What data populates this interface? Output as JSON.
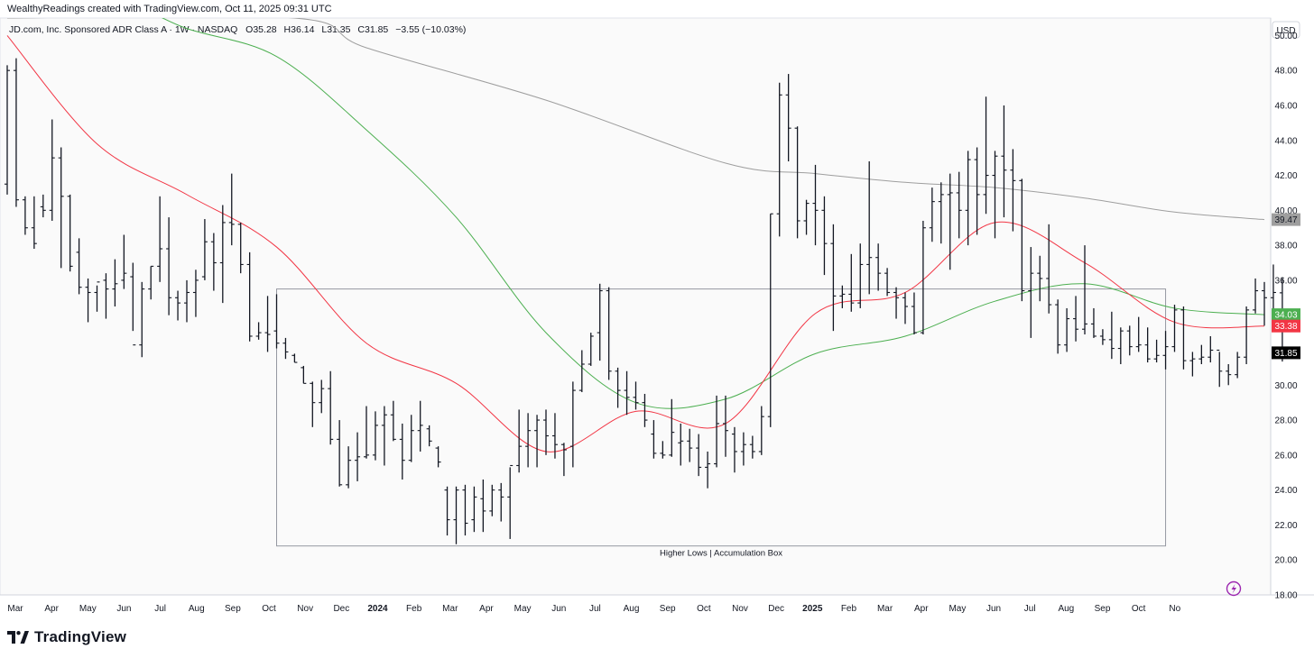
{
  "watermark": "WealthyReadings created with TradingView.com, Oct 11, 2025 09:31 UTC",
  "brand": "TradingView",
  "header": {
    "instrument": "JD.com, Inc. Sponsored ADR Class A · 1W · NASDAQ",
    "o_label": "O",
    "o": "35.28",
    "h_label": "H",
    "h": "36.14",
    "l_label": "L",
    "l": "31.35",
    "c_label": "C",
    "c": "31.85",
    "change": "−3.55 (−10.03%)"
  },
  "currency": "USD",
  "colors": {
    "bars": "#131722",
    "ma_short": "#f23645",
    "ma_mid": "#4caf50",
    "ma_long": "#9e9e9e",
    "price_tag": "#000000",
    "grid_bg": "#fafafa"
  },
  "chart_data": {
    "type": "ohlc_bars",
    "timeframe": "1W",
    "y_ticks": [
      "50.00",
      "48.00",
      "46.00",
      "44.00",
      "42.00",
      "40.00",
      "38.00",
      "36.00",
      "34.00",
      "32.00",
      "30.00",
      "28.00",
      "26.00",
      "24.00",
      "22.00",
      "20.00",
      "18.00"
    ],
    "ylim": [
      18,
      51
    ],
    "x_ticks": [
      "Mar",
      "Apr",
      "May",
      "Jun",
      "Jul",
      "Aug",
      "Sep",
      "Oct",
      "Nov",
      "Dec",
      "2024",
      "Feb",
      "Mar",
      "Apr",
      "May",
      "Jun",
      "Jul",
      "Aug",
      "Sep",
      "Oct",
      "Nov",
      "Dec",
      "2025",
      "Feb",
      "Mar",
      "Apr",
      "May",
      "Jun",
      "Jul",
      "Aug",
      "Sep",
      "Oct",
      "No"
    ],
    "bold_x_ticks": [
      "2024",
      "2025"
    ],
    "price_labels": [
      {
        "value": 39.47,
        "text": "39.47",
        "color": "#9e9e9e",
        "text_color": "#131722"
      },
      {
        "value": 34.03,
        "text": "34.03",
        "color": "#4caf50",
        "text_color": "#ffffff"
      },
      {
        "value": 33.38,
        "text": "33.38",
        "color": "#f23645",
        "text_color": "#ffffff"
      },
      {
        "value": 31.85,
        "text": "31.85",
        "color": "#000000",
        "text_color": "#ffffff"
      }
    ],
    "annotation": {
      "text": "Higher Lows | Accumulation Box",
      "x_start_bar": 30,
      "x_end_bar": 129,
      "y_top": 35.5,
      "y_bottom": 20.8
    },
    "bars": [
      [
        41.5,
        48.3,
        40.9,
        48.0
      ],
      [
        48.0,
        48.7,
        40.2,
        40.6
      ],
      [
        40.6,
        40.8,
        38.6,
        39.0
      ],
      [
        39.0,
        40.8,
        37.8,
        38.1
      ],
      [
        40.2,
        40.9,
        39.6,
        40.0
      ],
      [
        40.0,
        45.2,
        39.4,
        43.0
      ],
      [
        43.0,
        43.6,
        36.7,
        40.8
      ],
      [
        40.8,
        40.9,
        36.5,
        36.8
      ],
      [
        37.6,
        38.4,
        35.2,
        35.6
      ],
      [
        35.6,
        36.1,
        33.6,
        35.3
      ],
      [
        35.3,
        35.7,
        34.2,
        35.9
      ],
      [
        36.0,
        36.4,
        33.8,
        35.5
      ],
      [
        35.5,
        37.2,
        34.5,
        35.8
      ],
      [
        36.0,
        38.6,
        35.5,
        36.4
      ],
      [
        36.2,
        37.0,
        33.1,
        32.3
      ],
      [
        32.3,
        35.9,
        31.6,
        35.5
      ],
      [
        35.5,
        36.8,
        34.9,
        36.8
      ],
      [
        36.8,
        40.8,
        35.9,
        37.8
      ],
      [
        37.8,
        39.6,
        34.0,
        35.0
      ],
      [
        35.0,
        35.4,
        33.7,
        34.7
      ],
      [
        34.7,
        36.0,
        33.6,
        35.3
      ],
      [
        35.3,
        36.6,
        33.9,
        36.0
      ],
      [
        36.2,
        39.5,
        36.0,
        38.2
      ],
      [
        38.2,
        38.7,
        35.4,
        37.0
      ],
      [
        37.0,
        40.3,
        34.7,
        39.3
      ],
      [
        39.3,
        42.1,
        38.0,
        39.2
      ],
      [
        39.2,
        39.3,
        36.4,
        36.9
      ],
      [
        36.9,
        37.6,
        32.5,
        32.8
      ],
      [
        32.8,
        33.6,
        32.6,
        33.0
      ],
      [
        33.0,
        35.1,
        31.9,
        32.9
      ],
      [
        33.1,
        35.2,
        32.1,
        32.4
      ],
      [
        32.4,
        32.7,
        31.5,
        31.9
      ],
      [
        31.7,
        31.8,
        31.3,
        31.3
      ],
      [
        31.0,
        31.1,
        30.1,
        30.1
      ],
      [
        30.1,
        30.2,
        27.6,
        29.0
      ],
      [
        29.0,
        30.3,
        28.4,
        29.8
      ],
      [
        29.8,
        30.8,
        26.6,
        26.9
      ],
      [
        26.9,
        28.0,
        24.2,
        24.3
      ],
      [
        24.3,
        26.5,
        24.1,
        25.7
      ],
      [
        25.7,
        27.3,
        24.5,
        25.9
      ],
      [
        25.9,
        28.8,
        25.8,
        26.0
      ],
      [
        26.0,
        28.5,
        25.7,
        27.7
      ],
      [
        27.7,
        28.8,
        25.4,
        28.3
      ],
      [
        28.3,
        29.1,
        26.8,
        26.9
      ],
      [
        26.9,
        27.8,
        24.6,
        25.7
      ],
      [
        25.7,
        28.3,
        25.6,
        27.4
      ],
      [
        27.4,
        29.1,
        26.2,
        27.7
      ],
      [
        27.5,
        27.7,
        26.5,
        26.8
      ],
      [
        26.4,
        26.5,
        25.3,
        25.6
      ],
      [
        24.0,
        24.2,
        21.4,
        22.3
      ],
      [
        22.3,
        24.2,
        20.9,
        24.0
      ],
      [
        24.0,
        24.3,
        21.4,
        22.1
      ],
      [
        22.3,
        24.2,
        21.6,
        23.6
      ],
      [
        23.5,
        24.6,
        21.6,
        22.8
      ],
      [
        22.8,
        24.3,
        22.5,
        24.0
      ],
      [
        24.0,
        24.4,
        22.2,
        23.6
      ],
      [
        23.6,
        25.3,
        21.2,
        25.4
      ],
      [
        25.4,
        28.6,
        25.0,
        26.5
      ],
      [
        26.5,
        28.4,
        25.3,
        27.4
      ],
      [
        27.4,
        28.3,
        25.3,
        28.0
      ],
      [
        28.0,
        28.6,
        26.0,
        27.1
      ],
      [
        27.1,
        28.4,
        25.8,
        26.6
      ],
      [
        26.6,
        26.7,
        24.8,
        26.3
      ],
      [
        26.5,
        30.2,
        25.3,
        29.7
      ],
      [
        29.7,
        32.0,
        29.6,
        31.2
      ],
      [
        31.2,
        33.0,
        31.1,
        32.8
      ],
      [
        33.0,
        35.8,
        31.4,
        35.4
      ],
      [
        35.4,
        35.6,
        30.3,
        30.8
      ],
      [
        30.8,
        31.0,
        28.7,
        29.7
      ],
      [
        29.7,
        30.8,
        28.3,
        29.3
      ],
      [
        29.3,
        30.2,
        28.6,
        29.0
      ],
      [
        29.0,
        29.5,
        27.6,
        28.0
      ],
      [
        27.2,
        28.0,
        25.8,
        26.1
      ],
      [
        26.1,
        26.8,
        25.8,
        26.0
      ],
      [
        26.0,
        29.2,
        25.9,
        27.3
      ],
      [
        26.7,
        27.8,
        25.4,
        26.8
      ],
      [
        26.8,
        27.5,
        25.6,
        26.4
      ],
      [
        26.4,
        27.2,
        24.8,
        25.3
      ],
      [
        25.3,
        26.2,
        24.1,
        25.5
      ],
      [
        25.5,
        29.4,
        25.3,
        27.8
      ],
      [
        27.8,
        29.4,
        25.9,
        27.4
      ],
      [
        27.2,
        27.6,
        25.0,
        26.2
      ],
      [
        26.2,
        27.3,
        25.4,
        26.6
      ],
      [
        26.6,
        27.1,
        25.8,
        26.2
      ],
      [
        26.2,
        28.8,
        26.0,
        28.2
      ],
      [
        28.2,
        39.8,
        27.6,
        39.8
      ],
      [
        39.8,
        47.3,
        38.5,
        46.6
      ],
      [
        46.6,
        47.8,
        42.8,
        44.7
      ],
      [
        44.7,
        44.8,
        38.4,
        39.4
      ],
      [
        39.4,
        40.6,
        38.6,
        40.4
      ],
      [
        40.4,
        42.6,
        38.0,
        40.0
      ],
      [
        40.0,
        40.8,
        36.3,
        38.1
      ],
      [
        38.1,
        39.2,
        33.1,
        35.1
      ],
      [
        35.1,
        35.7,
        34.4,
        35.2
      ],
      [
        35.2,
        37.5,
        34.2,
        34.7
      ],
      [
        34.7,
        38.1,
        34.4,
        36.9
      ],
      [
        36.9,
        42.8,
        35.2,
        37.3
      ],
      [
        37.3,
        38.1,
        35.4,
        36.4
      ],
      [
        36.4,
        36.7,
        35.1,
        35.3
      ],
      [
        35.3,
        35.6,
        33.8,
        35.0
      ],
      [
        35.0,
        35.3,
        33.5,
        34.5
      ],
      [
        34.5,
        35.3,
        32.9,
        33.0
      ],
      [
        33.0,
        39.4,
        32.9,
        39.0
      ],
      [
        39.0,
        41.3,
        38.2,
        40.5
      ],
      [
        40.5,
        41.6,
        38.1,
        40.9
      ],
      [
        40.9,
        42.1,
        36.6,
        41.0
      ],
      [
        41.0,
        42.2,
        38.4,
        40.0
      ],
      [
        40.0,
        43.4,
        38.0,
        42.9
      ],
      [
        42.9,
        43.6,
        38.6,
        40.9
      ],
      [
        40.9,
        46.5,
        39.8,
        42.0
      ],
      [
        42.0,
        43.4,
        38.4,
        43.1
      ],
      [
        43.1,
        46.0,
        39.6,
        42.3
      ],
      [
        42.3,
        43.5,
        38.8,
        41.7
      ],
      [
        41.7,
        41.8,
        34.8,
        35.4
      ],
      [
        35.4,
        37.9,
        32.7,
        36.4
      ],
      [
        36.4,
        37.4,
        34.8,
        36.1
      ],
      [
        36.1,
        39.2,
        34.1,
        34.6
      ],
      [
        34.6,
        34.9,
        31.8,
        32.3
      ],
      [
        32.3,
        34.4,
        31.9,
        33.8
      ],
      [
        33.8,
        35.1,
        32.5,
        33.2
      ],
      [
        33.2,
        38.0,
        32.9,
        33.5
      ],
      [
        33.5,
        34.4,
        32.7,
        32.8
      ],
      [
        32.8,
        33.2,
        32.3,
        32.6
      ],
      [
        32.6,
        34.2,
        31.5,
        32.1
      ],
      [
        32.1,
        33.3,
        31.2,
        33.1
      ],
      [
        33.1,
        33.4,
        31.7,
        32.2
      ],
      [
        32.2,
        33.9,
        31.9,
        32.3
      ],
      [
        32.3,
        33.3,
        31.3,
        31.5
      ],
      [
        31.5,
        32.6,
        31.3,
        31.7
      ],
      [
        31.7,
        33.1,
        30.9,
        32.2
      ],
      [
        32.2,
        34.6,
        31.9,
        34.3
      ],
      [
        34.3,
        34.5,
        30.9,
        31.4
      ],
      [
        31.4,
        31.9,
        30.5,
        31.5
      ],
      [
        31.5,
        32.3,
        31.2,
        31.6
      ],
      [
        31.6,
        32.8,
        31.3,
        32.0
      ],
      [
        32.0,
        31.9,
        29.9,
        30.8
      ],
      [
        30.8,
        31.2,
        30.0,
        30.6
      ],
      [
        30.6,
        31.9,
        30.4,
        31.6
      ],
      [
        31.6,
        34.5,
        31.2,
        34.3
      ],
      [
        34.3,
        36.1,
        34.1,
        35.4
      ],
      [
        35.4,
        35.9,
        33.4,
        35.0
      ],
      [
        35.0,
        36.9,
        34.2,
        35.3
      ],
      [
        35.28,
        36.14,
        31.35,
        31.85
      ]
    ],
    "ma_short_points": [
      [
        0,
        50.0
      ],
      [
        10,
        43.8
      ],
      [
        20,
        40.9
      ],
      [
        30,
        37.9
      ],
      [
        40,
        32.4
      ],
      [
        50,
        30.1
      ],
      [
        60,
        26.2
      ],
      [
        70,
        28.5
      ],
      [
        80,
        27.8
      ],
      [
        90,
        34.1
      ],
      [
        100,
        35.3
      ],
      [
        110,
        39.3
      ],
      [
        120,
        37.0
      ],
      [
        130,
        33.6
      ],
      [
        140,
        33.38
      ]
    ],
    "ma_mid_points": [
      [
        0,
        52.0
      ],
      [
        12,
        52.0
      ],
      [
        20,
        50.4
      ],
      [
        30,
        48.8
      ],
      [
        40,
        44.6
      ],
      [
        50,
        39.6
      ],
      [
        60,
        33.0
      ],
      [
        70,
        29.0
      ],
      [
        80,
        29.2
      ],
      [
        90,
        31.8
      ],
      [
        100,
        32.8
      ],
      [
        110,
        34.8
      ],
      [
        120,
        35.8
      ],
      [
        130,
        34.4
      ],
      [
        140,
        34.03
      ]
    ],
    "ma_long_points": [
      [
        0,
        51.0
      ],
      [
        32,
        51.0
      ],
      [
        40,
        49.3
      ],
      [
        60,
        46.3
      ],
      [
        80,
        42.7
      ],
      [
        90,
        42.1
      ],
      [
        100,
        41.6
      ],
      [
        110,
        41.3
      ],
      [
        120,
        40.7
      ],
      [
        130,
        39.9
      ],
      [
        140,
        39.47
      ]
    ]
  }
}
